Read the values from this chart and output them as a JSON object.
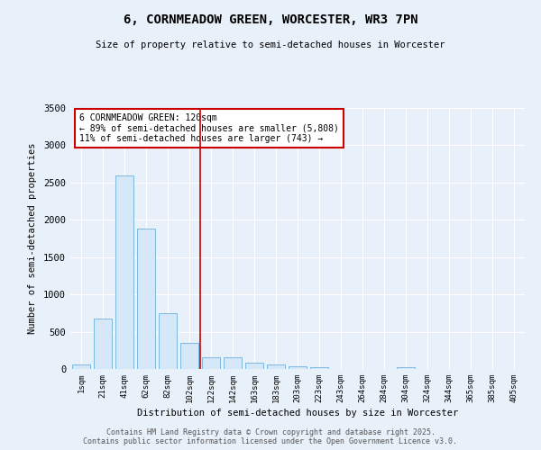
{
  "title": "6, CORNMEADOW GREEN, WORCESTER, WR3 7PN",
  "subtitle": "Size of property relative to semi-detached houses in Worcester",
  "xlabel": "Distribution of semi-detached houses by size in Worcester",
  "ylabel": "Number of semi-detached properties",
  "bar_color": "#d6e8f7",
  "bar_edge_color": "#7ab8e0",
  "background_color": "#e8f0fa",
  "grid_color": "#ffffff",
  "marker_line_color": "#cc0000",
  "annotation_box_edge_color": "#cc0000",
  "categories": [
    "1sqm",
    "21sqm",
    "41sqm",
    "62sqm",
    "82sqm",
    "102sqm",
    "122sqm",
    "142sqm",
    "163sqm",
    "183sqm",
    "203sqm",
    "223sqm",
    "243sqm",
    "264sqm",
    "284sqm",
    "304sqm",
    "324sqm",
    "344sqm",
    "365sqm",
    "385sqm",
    "405sqm"
  ],
  "values": [
    65,
    680,
    2590,
    1880,
    750,
    350,
    155,
    155,
    80,
    55,
    35,
    20,
    0,
    0,
    0,
    30,
    0,
    0,
    0,
    0,
    0
  ],
  "marker_bin_index": 6,
  "marker_label": "6 CORNMEADOW GREEN: 120sqm",
  "marker_sub1": "← 89% of semi-detached houses are smaller (5,808)",
  "marker_sub2": "11% of semi-detached houses are larger (743) →",
  "ylim": [
    0,
    3500
  ],
  "yticks": [
    0,
    500,
    1000,
    1500,
    2000,
    2500,
    3000,
    3500
  ],
  "footer1": "Contains HM Land Registry data © Crown copyright and database right 2025.",
  "footer2": "Contains public sector information licensed under the Open Government Licence v3.0."
}
